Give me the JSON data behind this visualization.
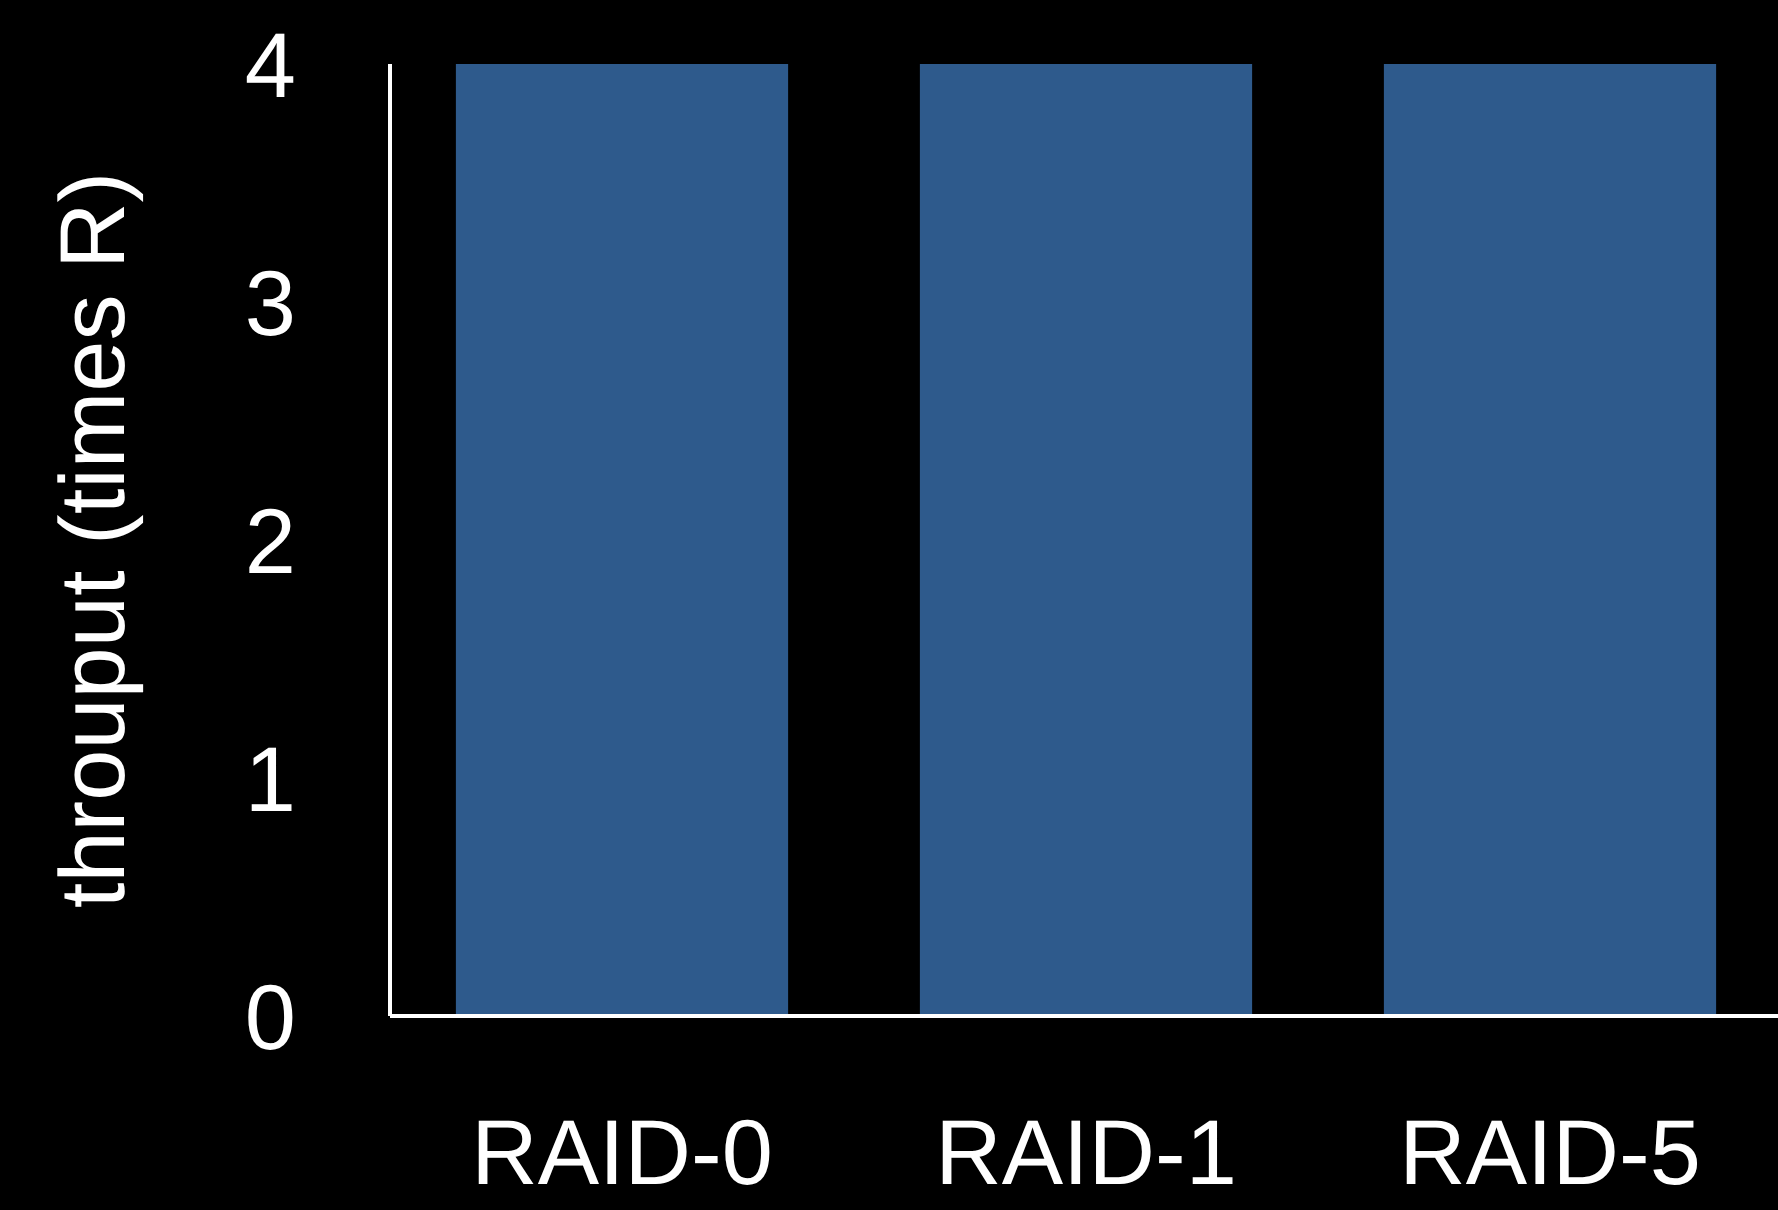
{
  "chart_data": {
    "type": "bar",
    "ylabel": "throuput (times R)",
    "categories": [
      "RAID-0",
      "RAID-1",
      "RAID-5"
    ],
    "values": [
      4,
      4,
      4
    ],
    "color": "#2e5a8c",
    "ylim": [
      0,
      4
    ],
    "yticks": [
      0,
      1,
      2,
      3,
      4
    ],
    "grid": false
  }
}
